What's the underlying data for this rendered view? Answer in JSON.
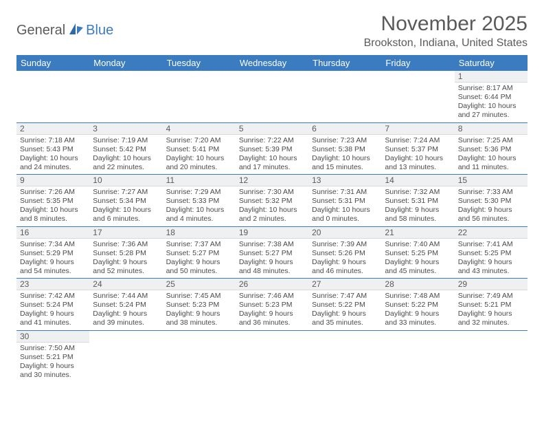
{
  "logo": {
    "text1": "General",
    "text2": "Blue"
  },
  "title": "November 2025",
  "location": "Brookston, Indiana, United States",
  "weekdays": [
    "Sunday",
    "Monday",
    "Tuesday",
    "Wednesday",
    "Thursday",
    "Friday",
    "Saturday"
  ],
  "colors": {
    "header_bg": "#3b7bbf",
    "header_text": "#ffffff",
    "daynum_bg": "#eef0f1",
    "border": "#3b7bbf",
    "text": "#4a4a4a",
    "title": "#5a5a5a"
  },
  "weeks": [
    [
      null,
      null,
      null,
      null,
      null,
      null,
      {
        "d": "1",
        "sr": "8:17 AM",
        "ss": "6:44 PM",
        "dl": "10 hours and 27 minutes."
      }
    ],
    [
      {
        "d": "2",
        "sr": "7:18 AM",
        "ss": "5:43 PM",
        "dl": "10 hours and 24 minutes."
      },
      {
        "d": "3",
        "sr": "7:19 AM",
        "ss": "5:42 PM",
        "dl": "10 hours and 22 minutes."
      },
      {
        "d": "4",
        "sr": "7:20 AM",
        "ss": "5:41 PM",
        "dl": "10 hours and 20 minutes."
      },
      {
        "d": "5",
        "sr": "7:22 AM",
        "ss": "5:39 PM",
        "dl": "10 hours and 17 minutes."
      },
      {
        "d": "6",
        "sr": "7:23 AM",
        "ss": "5:38 PM",
        "dl": "10 hours and 15 minutes."
      },
      {
        "d": "7",
        "sr": "7:24 AM",
        "ss": "5:37 PM",
        "dl": "10 hours and 13 minutes."
      },
      {
        "d": "8",
        "sr": "7:25 AM",
        "ss": "5:36 PM",
        "dl": "10 hours and 11 minutes."
      }
    ],
    [
      {
        "d": "9",
        "sr": "7:26 AM",
        "ss": "5:35 PM",
        "dl": "10 hours and 8 minutes."
      },
      {
        "d": "10",
        "sr": "7:27 AM",
        "ss": "5:34 PM",
        "dl": "10 hours and 6 minutes."
      },
      {
        "d": "11",
        "sr": "7:29 AM",
        "ss": "5:33 PM",
        "dl": "10 hours and 4 minutes."
      },
      {
        "d": "12",
        "sr": "7:30 AM",
        "ss": "5:32 PM",
        "dl": "10 hours and 2 minutes."
      },
      {
        "d": "13",
        "sr": "7:31 AM",
        "ss": "5:31 PM",
        "dl": "10 hours and 0 minutes."
      },
      {
        "d": "14",
        "sr": "7:32 AM",
        "ss": "5:31 PM",
        "dl": "9 hours and 58 minutes."
      },
      {
        "d": "15",
        "sr": "7:33 AM",
        "ss": "5:30 PM",
        "dl": "9 hours and 56 minutes."
      }
    ],
    [
      {
        "d": "16",
        "sr": "7:34 AM",
        "ss": "5:29 PM",
        "dl": "9 hours and 54 minutes."
      },
      {
        "d": "17",
        "sr": "7:36 AM",
        "ss": "5:28 PM",
        "dl": "9 hours and 52 minutes."
      },
      {
        "d": "18",
        "sr": "7:37 AM",
        "ss": "5:27 PM",
        "dl": "9 hours and 50 minutes."
      },
      {
        "d": "19",
        "sr": "7:38 AM",
        "ss": "5:27 PM",
        "dl": "9 hours and 48 minutes."
      },
      {
        "d": "20",
        "sr": "7:39 AM",
        "ss": "5:26 PM",
        "dl": "9 hours and 46 minutes."
      },
      {
        "d": "21",
        "sr": "7:40 AM",
        "ss": "5:25 PM",
        "dl": "9 hours and 45 minutes."
      },
      {
        "d": "22",
        "sr": "7:41 AM",
        "ss": "5:25 PM",
        "dl": "9 hours and 43 minutes."
      }
    ],
    [
      {
        "d": "23",
        "sr": "7:42 AM",
        "ss": "5:24 PM",
        "dl": "9 hours and 41 minutes."
      },
      {
        "d": "24",
        "sr": "7:44 AM",
        "ss": "5:24 PM",
        "dl": "9 hours and 39 minutes."
      },
      {
        "d": "25",
        "sr": "7:45 AM",
        "ss": "5:23 PM",
        "dl": "9 hours and 38 minutes."
      },
      {
        "d": "26",
        "sr": "7:46 AM",
        "ss": "5:23 PM",
        "dl": "9 hours and 36 minutes."
      },
      {
        "d": "27",
        "sr": "7:47 AM",
        "ss": "5:22 PM",
        "dl": "9 hours and 35 minutes."
      },
      {
        "d": "28",
        "sr": "7:48 AM",
        "ss": "5:22 PM",
        "dl": "9 hours and 33 minutes."
      },
      {
        "d": "29",
        "sr": "7:49 AM",
        "ss": "5:21 PM",
        "dl": "9 hours and 32 minutes."
      }
    ],
    [
      {
        "d": "30",
        "sr": "7:50 AM",
        "ss": "5:21 PM",
        "dl": "9 hours and 30 minutes."
      },
      null,
      null,
      null,
      null,
      null,
      null
    ]
  ],
  "labels": {
    "sunrise": "Sunrise: ",
    "sunset": "Sunset: ",
    "daylight": "Daylight: "
  }
}
